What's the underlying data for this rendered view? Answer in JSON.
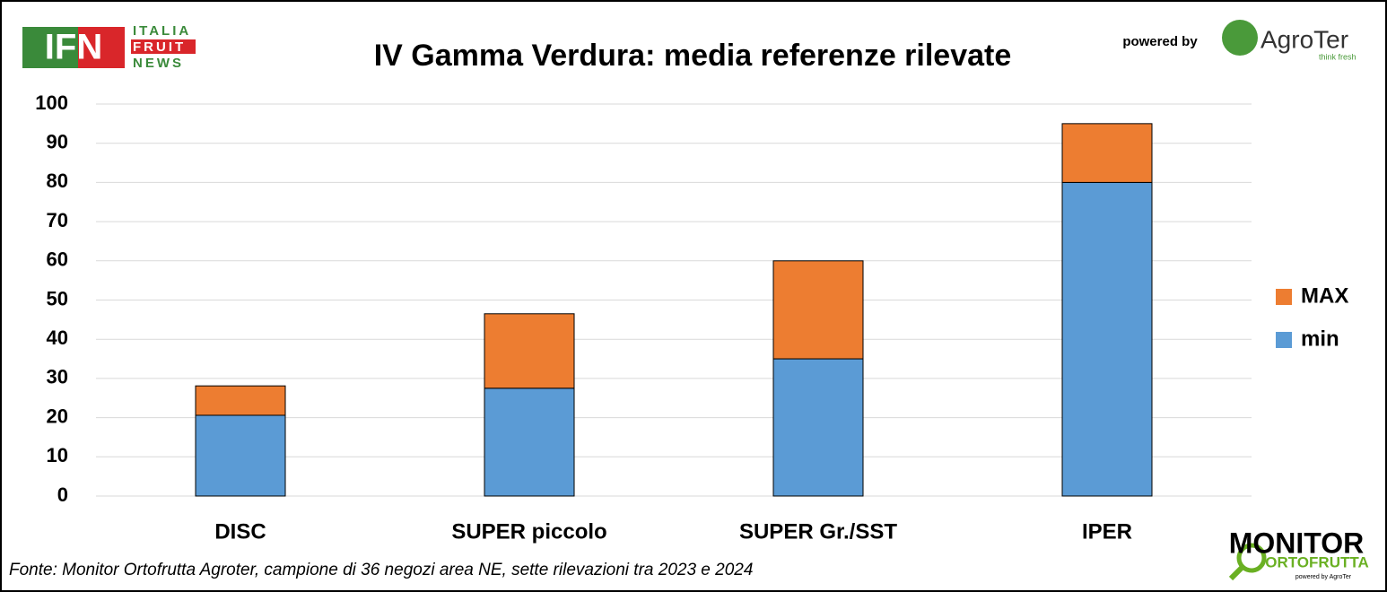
{
  "chart_data": {
    "type": "stacked_bar",
    "title": "IV Gamma Verdura: media referenze rilevate",
    "categories": [
      "DISC",
      "SUPER piccolo",
      "SUPER Gr./SST",
      "IPER"
    ],
    "series": [
      {
        "name": "min",
        "color": "#5b9bd5",
        "values": [
          20.6,
          27.5,
          35,
          80
        ]
      },
      {
        "name": "MAX",
        "color": "#ed7d31",
        "values": [
          7.5,
          19,
          25,
          15
        ]
      }
    ],
    "ylim": [
      0,
      100
    ],
    "yticks": [
      0,
      10,
      20,
      30,
      40,
      50,
      60,
      70,
      80,
      90,
      100
    ],
    "grid": true,
    "legend": "right",
    "source": "Fonte: Monitor Ortofrutta Agroter, campione di 36 negozi area NE, sette rilevazioni tra 2023 e 2024"
  },
  "logos": {
    "ifn": "IFN",
    "italia": "ITALIA",
    "fruit": "FRUIT",
    "news": "NEWS",
    "powered_by": "powered by",
    "agroter": "AgroTer",
    "think_fresh": "think fresh",
    "monitor": "MONITOR",
    "ortofrutta": "ORTOFRUTTA",
    "monitor_powered": "powered by AgroTer"
  }
}
